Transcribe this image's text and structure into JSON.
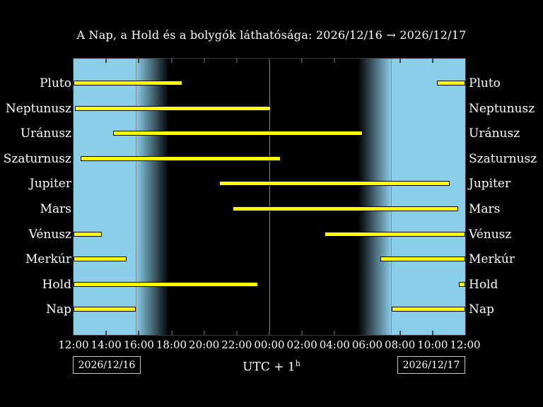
{
  "title": "A Nap, a Hold és a bolygók láthatósága: 2026/12/16 → 2026/12/17",
  "footer": {
    "date_left": "2026/12/16",
    "date_right": "2026/12/17",
    "timezone_prefix": "UTC + 1",
    "timezone_superscript": "h"
  },
  "chart_data": {
    "type": "bar",
    "orientation": "horizontal-intervals",
    "description": "Visibility (above-horizon) intervals of Sun, Moon and planets over 24h from 2026/12/16 12:00 to 2026/12/17 12:00, local time UTC+1. Yellow bars = object up; background light blue = daylight, black = night, gradients = twilight.",
    "x_axis": {
      "hours_span": 24,
      "start_hour_label": "12:00",
      "tick_interval_hours": 2,
      "tick_labels": [
        "12:00",
        "14:00",
        "16:00",
        "18:00",
        "20:00",
        "22:00",
        "00:00",
        "02:00",
        "04:00",
        "06:00",
        "08:00",
        "10:00",
        "12:00"
      ]
    },
    "sun": {
      "sunset_time": "15:50",
      "sunset_h": 3.82,
      "dusk_end_h": 5.87,
      "dawn_start_h": 17.43,
      "sunrise_time": "07:30",
      "sunrise_h": 19.48,
      "midnight_h": 12.0,
      "event_lines": [
        {
          "name": "sunset-line",
          "h": 3.82
        },
        {
          "name": "midnight-line",
          "h": 12.0
        },
        {
          "name": "sunrise-line",
          "h": 19.48
        }
      ]
    },
    "rows": [
      {
        "name": "Pluto",
        "intervals_h": [
          [
            0,
            6.68
          ],
          [
            22.28,
            24
          ]
        ],
        "intervals_label": [
          "12:00–18:40",
          "10:15–12:00"
        ]
      },
      {
        "name": "Neptunusz",
        "intervals_h": [
          [
            0.1,
            12.08
          ]
        ],
        "intervals_label": [
          "12:05–00:05"
        ]
      },
      {
        "name": "Uránusz",
        "intervals_h": [
          [
            2.41,
            17.72
          ]
        ],
        "intervals_label": [
          "14:25–05:45"
        ]
      },
      {
        "name": "Szaturnusz",
        "intervals_h": [
          [
            0.44,
            12.71
          ]
        ],
        "intervals_label": [
          "12:25–00:40"
        ]
      },
      {
        "name": "Jupiter",
        "intervals_h": [
          [
            8.94,
            23.06
          ]
        ],
        "intervals_label": [
          "20:55–11:05"
        ]
      },
      {
        "name": "Mars",
        "intervals_h": [
          [
            9.74,
            23.57
          ]
        ],
        "intervals_label": [
          "21:45–11:35"
        ]
      },
      {
        "name": "Vénusz",
        "intervals_h": [
          [
            0,
            1.72
          ],
          [
            15.36,
            24
          ]
        ],
        "intervals_label": [
          "12:00–13:45",
          "03:20–12:00"
        ]
      },
      {
        "name": "Merkúr",
        "intervals_h": [
          [
            0,
            3.24
          ],
          [
            18.8,
            24
          ]
        ],
        "intervals_label": [
          "12:00–15:15",
          "06:50–12:00"
        ]
      },
      {
        "name": "Hold",
        "intervals_h": [
          [
            0,
            11.29
          ],
          [
            23.62,
            24
          ]
        ],
        "intervals_label": [
          "12:00–23:15",
          "11:40–12:00"
        ]
      },
      {
        "name": "Nap",
        "intervals_h": [
          [
            0,
            3.82
          ],
          [
            19.48,
            24
          ]
        ],
        "intervals_label": [
          "12:00–15:50",
          "07:30–12:00"
        ]
      }
    ],
    "colors": {
      "day_background": "#8bcee9",
      "night_background": "#000000",
      "bar_fill": "#ffff00",
      "bar_border": "#000000",
      "event_line": "#8a8a8a",
      "text": "#ffffff"
    },
    "legend_position": "none",
    "grid": false
  }
}
